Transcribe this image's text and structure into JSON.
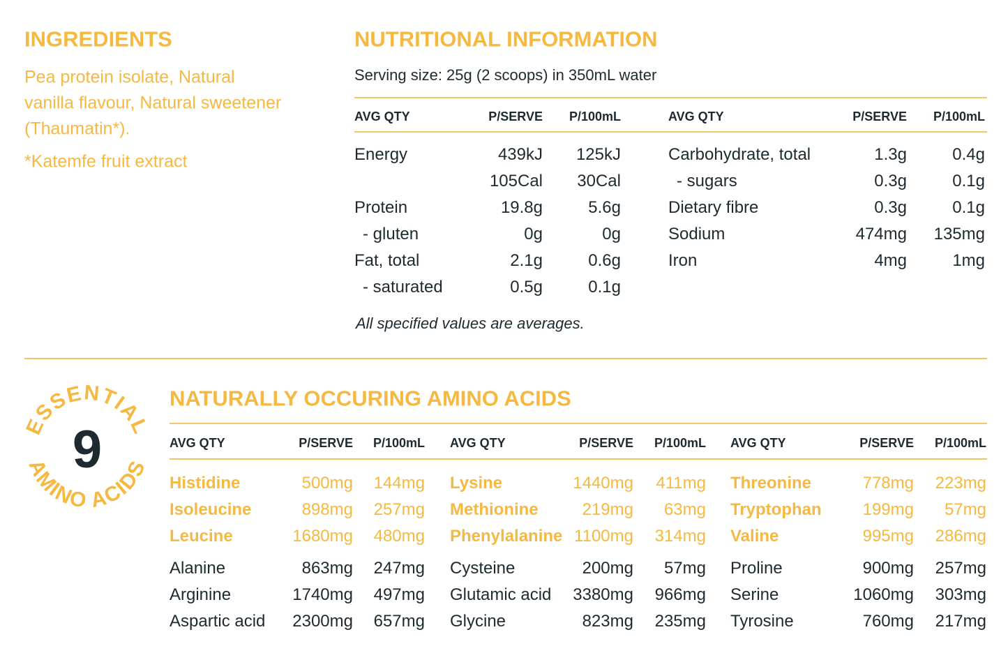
{
  "ingredients": {
    "title": "INGREDIENTS",
    "lines": [
      "Pea protein isolate, Natural",
      "vanilla flavour, Natural sweetener",
      "(Thaumatin*)."
    ],
    "note": "*Katemfe fruit extract"
  },
  "nutrition": {
    "title": "NUTRITIONAL INFORMATION",
    "serving": "Serving size: 25g (2 scoops) in 350mL water",
    "headers": [
      "AVG QTY",
      "P/SERVE",
      "P/100mL"
    ],
    "left_rows": [
      [
        "Energy",
        "439kJ",
        "125kJ"
      ],
      [
        null,
        "105Cal",
        "30Cal"
      ],
      [
        "Protein",
        "19.8g",
        "5.6g"
      ],
      [
        "- gluten",
        "0g",
        "0g"
      ],
      [
        "Fat, total",
        "2.1g",
        "0.6g"
      ],
      [
        "- saturated",
        "0.5g",
        "0.1g"
      ]
    ],
    "right_rows": [
      [
        "Carbohydrate, total",
        "1.3g",
        "0.4g"
      ],
      [
        "- sugars",
        "0.3g",
        "0.1g"
      ],
      [
        "Dietary fibre",
        "0.3g",
        "0.1g"
      ],
      [
        "Sodium",
        "474mg",
        "135mg"
      ],
      [
        "Iron",
        "4mg",
        "1mg"
      ]
    ],
    "footnote": "All specified values are averages."
  },
  "amino": {
    "badge": {
      "top": "ESSENTIAL",
      "number": "9",
      "bottom": "AMINO ACIDS"
    },
    "title": "NATURALLY OCCURING AMINO ACIDS",
    "headers": [
      "AVG QTY",
      "P/SERVE",
      "P/100mL"
    ],
    "essential": [
      [
        [
          "Histidine",
          "500mg",
          "144mg"
        ],
        [
          "Isoleucine",
          "898mg",
          "257mg"
        ],
        [
          "Leucine",
          "1680mg",
          "480mg"
        ]
      ],
      [
        [
          "Lysine",
          "1440mg",
          "411mg"
        ],
        [
          "Methionine",
          "219mg",
          "63mg"
        ],
        [
          "Phenylalanine",
          "1100mg",
          "314mg"
        ]
      ],
      [
        [
          "Threonine",
          "778mg",
          "223mg"
        ],
        [
          "Tryptophan",
          "199mg",
          "57mg"
        ],
        [
          "Valine",
          "995mg",
          "286mg"
        ]
      ]
    ],
    "other": [
      [
        [
          "Alanine",
          "863mg",
          "247mg"
        ],
        [
          "Arginine",
          "1740mg",
          "497mg"
        ],
        [
          "Aspartic acid",
          "2300mg",
          "657mg"
        ]
      ],
      [
        [
          "Cysteine",
          "200mg",
          "57mg"
        ],
        [
          "Glutamic acid",
          "3380mg",
          "966mg"
        ],
        [
          "Glycine",
          "823mg",
          "235mg"
        ]
      ],
      [
        [
          "Proline",
          "900mg",
          "257mg"
        ],
        [
          "Serine",
          "1060mg",
          "303mg"
        ],
        [
          "Tyrosine",
          "760mg",
          "217mg"
        ]
      ]
    ]
  }
}
